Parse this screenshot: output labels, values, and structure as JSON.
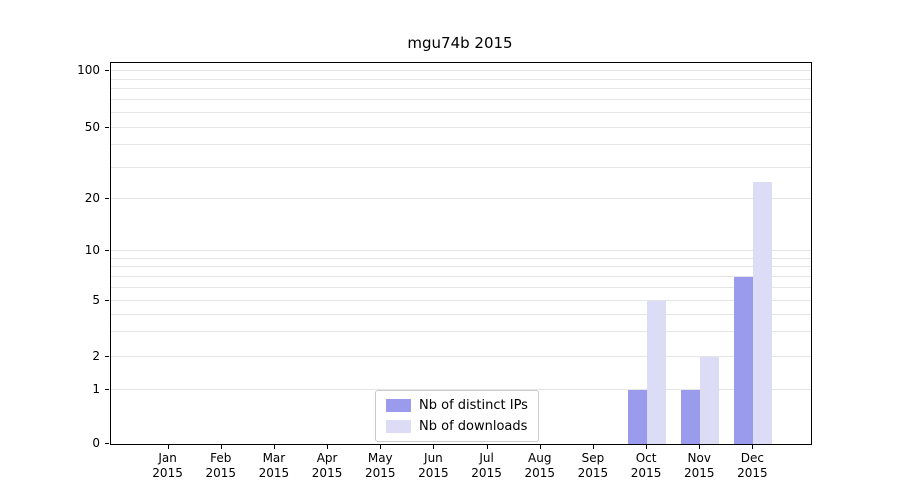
{
  "chart_data": {
    "type": "bar",
    "title": "mgu74b 2015",
    "categories": [
      "Jan",
      "Feb",
      "Mar",
      "Apr",
      "May",
      "Jun",
      "Jul",
      "Aug",
      "Sep",
      "Oct",
      "Nov",
      "Dec"
    ],
    "category_year": "2015",
    "series": [
      {
        "name": "Nb of distinct IPs",
        "color": "#9b9bee",
        "values": [
          0,
          0,
          0,
          0,
          0,
          0,
          0,
          0,
          0,
          1,
          1,
          7
        ]
      },
      {
        "name": "Nb of downloads",
        "color": "#dcdcf7",
        "values": [
          0,
          0,
          0,
          0,
          0,
          0,
          0,
          0,
          0,
          5,
          2,
          25
        ]
      }
    ],
    "yticks": [
      0,
      1,
      2,
      5,
      10,
      20,
      50,
      100
    ],
    "ylim": [
      0,
      110
    ],
    "yscale": "log-like (symlog)",
    "grid": "horizontal minor+major",
    "minor_gridline_values": [
      1,
      2,
      3,
      4,
      5,
      6,
      7,
      8,
      9,
      10,
      20,
      30,
      40,
      50,
      60,
      70,
      80,
      90,
      100
    ],
    "legend": {
      "position": "lower center",
      "entries": [
        "Nb of distinct IPs",
        "Nb of downloads"
      ]
    }
  }
}
